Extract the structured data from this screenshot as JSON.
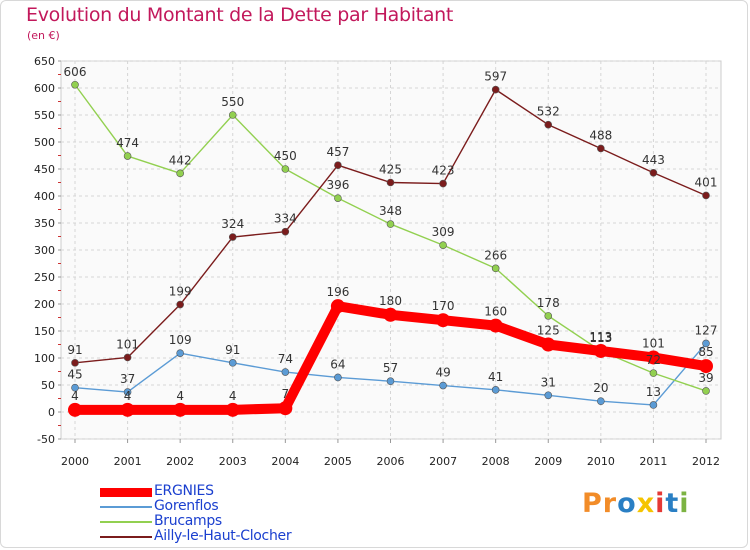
{
  "header": {
    "title": "Evolution du Montant de la Dette par Habitant",
    "subtitle": "(en €)"
  },
  "logo": {
    "text": "Proxiti",
    "colors": [
      "#f28c28",
      "#f28c28",
      "#2a7fc4",
      "#f5c400",
      "#e53935",
      "#2a7fc4",
      "#7cb342"
    ]
  },
  "chart_data": {
    "type": "line",
    "title": "Evolution du Montant de la Dette par Habitant",
    "subtitle": "(en €)",
    "xlabel": "",
    "ylabel": "",
    "x": [
      "2000",
      "2001",
      "2002",
      "2003",
      "2004",
      "2005",
      "2006",
      "2007",
      "2008",
      "2009",
      "2010",
      "2011",
      "2012"
    ],
    "ylim": [
      -50,
      650
    ],
    "yticks": [
      -50,
      0,
      50,
      100,
      150,
      200,
      250,
      300,
      350,
      400,
      450,
      500,
      550,
      600,
      650
    ],
    "grid": true,
    "legend_position": "bottom-left",
    "series": [
      {
        "name": "ERGNIES",
        "color": "#ff0000",
        "emphasis": true,
        "values": [
          4,
          4,
          4,
          4,
          7,
          196,
          180,
          170,
          160,
          125,
          113,
          101,
          85
        ]
      },
      {
        "name": "Gorenflos",
        "color": "#5b9bd5",
        "emphasis": false,
        "values": [
          45,
          37,
          109,
          91,
          74,
          64,
          57,
          49,
          41,
          31,
          20,
          13,
          127
        ]
      },
      {
        "name": "Brucamps",
        "color": "#92d050",
        "emphasis": false,
        "values": [
          606,
          474,
          442,
          550,
          450,
          396,
          348,
          309,
          266,
          178,
          113,
          72,
          39
        ]
      },
      {
        "name": "Ailly-le-Haut-Clocher",
        "color": "#7b1c1c",
        "emphasis": false,
        "values": [
          91,
          101,
          199,
          324,
          334,
          457,
          425,
          423,
          597,
          532,
          488,
          443,
          401
        ]
      }
    ]
  }
}
